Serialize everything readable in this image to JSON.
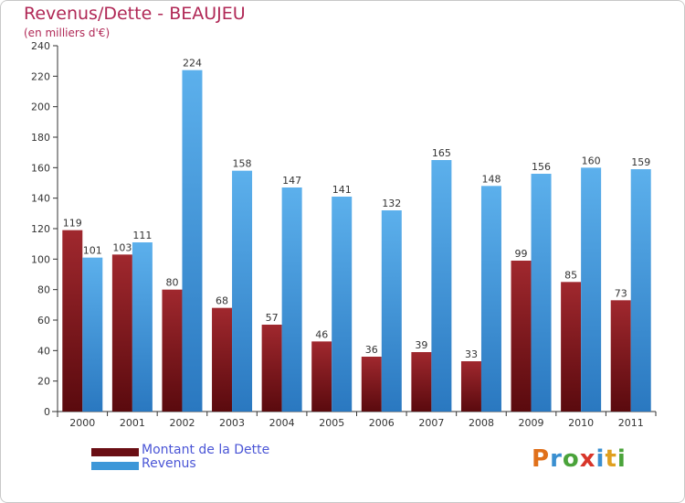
{
  "chart_data": {
    "type": "bar",
    "title": "Revenus/Dette - BEAUJEU",
    "subtitle": "(en milliers d'€)",
    "categories": [
      "2000",
      "2001",
      "2002",
      "2003",
      "2004",
      "2005",
      "2006",
      "2007",
      "2008",
      "2009",
      "2010",
      "2011"
    ],
    "series": [
      {
        "name": "Montant de la Dette",
        "color": "#7a1218",
        "values": [
          119,
          103,
          80,
          68,
          57,
          46,
          36,
          39,
          33,
          99,
          85,
          73
        ]
      },
      {
        "name": "Revenus",
        "color": "#3d97d8",
        "values": [
          101,
          111,
          224,
          158,
          147,
          141,
          132,
          165,
          148,
          156,
          160,
          159
        ]
      }
    ],
    "ylim": [
      0,
      240
    ],
    "yticks": [
      0,
      20,
      40,
      60,
      80,
      100,
      120,
      140,
      160,
      180,
      200,
      220,
      240
    ],
    "grid": false,
    "legend": "bottom-left",
    "data_labels": true
  },
  "logo": {
    "text": "Proxiti",
    "letters": [
      {
        "ch": "P",
        "color": "#e0701a"
      },
      {
        "ch": "r",
        "color": "#3a8fd0"
      },
      {
        "ch": "o",
        "color": "#4aa33a"
      },
      {
        "ch": "x",
        "color": "#d8362a"
      },
      {
        "ch": "i",
        "color": "#3a8fd0"
      },
      {
        "ch": "t",
        "color": "#e0a020"
      },
      {
        "ch": "i",
        "color": "#4aa33a"
      }
    ]
  }
}
